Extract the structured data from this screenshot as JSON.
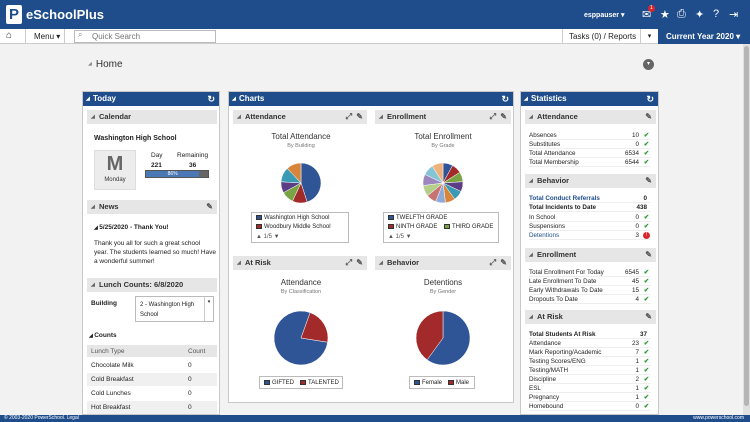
{
  "header": {
    "logo_letter": "P",
    "app_title": "eSchoolPlus",
    "user": "esppauser ▾",
    "mail_badge": "1"
  },
  "nav": {
    "menu_label": "Menu ▾",
    "search_placeholder": "Quick Search",
    "tasks_label": "Tasks (0) / Reports",
    "year_label": "Current Year 2020 ▾"
  },
  "page": {
    "title": "Home"
  },
  "today": {
    "title": "Today",
    "calendar": {
      "label": "Calendar",
      "school": "Washington High School",
      "day_label": "Day",
      "remaining_label": "Remaining",
      "day_value": "221",
      "remaining_value": "36",
      "progress_text": "86%",
      "progress": 0.86,
      "month_letter": "M",
      "weekday": "Monday"
    },
    "news": {
      "label": "News",
      "headline": "5/25/2020 - Thank You!",
      "body": "Thank you all for such a great school year. The students learned so much! Have a wonderful summer!"
    },
    "lunch": {
      "label": "Lunch Counts: 6/8/2020",
      "building_label": "Building",
      "building_value": "2 - Washington High School",
      "counts_label": "Counts",
      "col_type": "Lunch Type",
      "col_count": "Count",
      "rows": [
        {
          "type": "Chocolate Milk",
          "count": "0"
        },
        {
          "type": "Cold Breakfast",
          "count": "0"
        },
        {
          "type": "Cold Lunches",
          "count": "0"
        },
        {
          "type": "Hot Breakfast",
          "count": "0"
        }
      ]
    }
  },
  "charts": {
    "title": "Charts",
    "attendance": {
      "label": "Attendance",
      "title": "Total Attendance",
      "sub": "By Building",
      "legend": [
        "Washington High School",
        "Woodbury Middle School"
      ],
      "pager": "1/5"
    },
    "enrollment": {
      "label": "Enrollment",
      "title": "Total Enrollment",
      "sub": "By Grade",
      "legend": [
        "TWELFTH GRADE",
        "NINTH GRADE",
        "THIRD GRADE"
      ],
      "pager": "1/5"
    },
    "atrisk": {
      "label": "At Risk",
      "title": "Attendance",
      "sub": "By Classification",
      "legend": [
        "GIFTED",
        "TALENTED"
      ]
    },
    "behavior": {
      "label": "Behavior",
      "title": "Detentions",
      "sub": "By Gender",
      "legend": [
        "Female",
        "Male"
      ]
    }
  },
  "chart_data": [
    {
      "type": "pie",
      "categories": [
        "Washington High School",
        "Woodbury Middle School",
        "other",
        "other",
        "other",
        "other"
      ],
      "values": [
        45,
        12,
        10,
        9,
        12,
        12
      ],
      "colors": [
        "#2f5597",
        "#a32a2a",
        "#7aa345",
        "#5d3d86",
        "#3a9ab3",
        "#d8843a"
      ]
    },
    {
      "type": "pie",
      "categories": [
        "TWELFTH GRADE",
        "NINTH GRADE",
        "THIRD GRADE",
        "other",
        "other",
        "other",
        "other",
        "other",
        "other",
        "other",
        "other",
        "other"
      ],
      "values": [
        8,
        8,
        8,
        8,
        8,
        8,
        8,
        8,
        9,
        9,
        9,
        9
      ],
      "colors": [
        "#2f5597",
        "#a32a2a",
        "#7aa345",
        "#5d3d86",
        "#3a9ab3",
        "#d8843a",
        "#8eaadb",
        "#c97272",
        "#b3cf8a",
        "#9b86bd",
        "#84c4d4",
        "#f0b07a"
      ]
    },
    {
      "type": "pie",
      "categories": [
        "GIFTED",
        "TALENTED"
      ],
      "values": [
        78,
        22
      ],
      "colors": [
        "#2f5597",
        "#a32a2a"
      ]
    },
    {
      "type": "pie",
      "categories": [
        "Female",
        "Male"
      ],
      "values": [
        60,
        40
      ],
      "colors": [
        "#2f5597",
        "#a32a2a"
      ]
    }
  ],
  "statistics": {
    "title": "Statistics",
    "attendance": {
      "label": "Attendance",
      "rows": [
        {
          "k": "Absences",
          "v": "10"
        },
        {
          "k": "Substitutes",
          "v": "0"
        },
        {
          "k": "Total Attendance",
          "v": "6534"
        },
        {
          "k": "Total Membership",
          "v": "6544"
        }
      ]
    },
    "behavior": {
      "label": "Behavior",
      "referrals": "Total Conduct Referrals",
      "referrals_v": "0",
      "incidents": "Total Incidents to Date",
      "incidents_v": "438",
      "rows": [
        {
          "k": "In School",
          "v": "0"
        },
        {
          "k": "Suspensions",
          "v": "0"
        },
        {
          "k": "Detentions",
          "v": "3"
        }
      ]
    },
    "enrollment": {
      "label": "Enrollment",
      "rows": [
        {
          "k": "Total Enrollment For Today",
          "v": "6545"
        },
        {
          "k": "Late Enrollment To Date",
          "v": "45"
        },
        {
          "k": "Early Withdrawals To Date",
          "v": "15"
        },
        {
          "k": "Dropouts To Date",
          "v": "4"
        }
      ]
    },
    "atrisk": {
      "label": "At Risk",
      "total": "Total Students At Risk",
      "total_v": "37",
      "rows": [
        {
          "k": "Attendance",
          "v": "23"
        },
        {
          "k": "Mark Reporting/Academic",
          "v": "7"
        },
        {
          "k": "Testing Scores/ENG",
          "v": "1"
        },
        {
          "k": "Testing/MATH",
          "v": "1"
        },
        {
          "k": "Discipline",
          "v": "2"
        },
        {
          "k": "ESL",
          "v": "1"
        },
        {
          "k": "Pregnancy",
          "v": "1"
        },
        {
          "k": "Homebound",
          "v": "0"
        }
      ]
    }
  },
  "footer": {
    "left": "© 2003-2020 PowerSchool. Legal",
    "right": "www.powerschool.com"
  }
}
